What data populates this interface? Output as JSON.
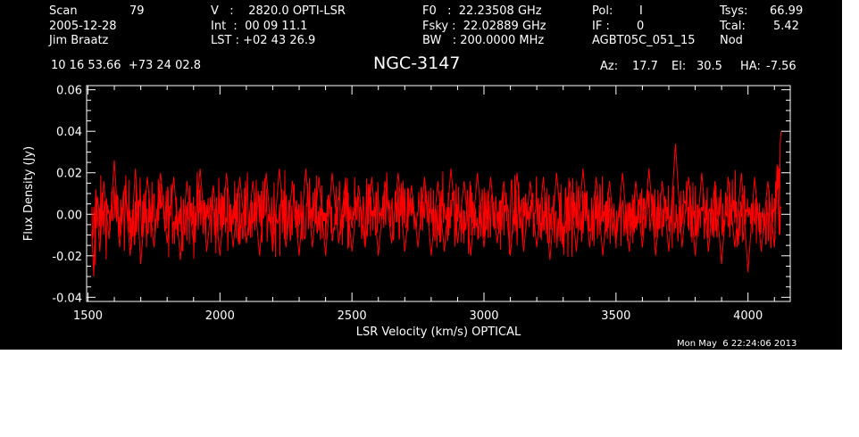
{
  "header": {
    "scan_label": "Scan",
    "scan_value": "79",
    "date": "2005-12-28",
    "observer": "Jim Braatz",
    "v_line": "V   :    2820.0 OPTI-LSR",
    "int_line": "Int  :  00 09 11.1",
    "lst_line": "LST : +02 43 26.9",
    "f0_line": "F0   :  22.23508 GHz",
    "fsky_line": "Fsky :  22.02889 GHz",
    "bw_line": "BW   : 200.0000 MHz",
    "pol_label": "Pol:",
    "pol_value": "I",
    "if_label": "IF :",
    "if_value": "0",
    "project": "AGBT05C_051_15",
    "tsys_label": "Tsys:",
    "tsys_value": "66.99",
    "tcal_label": "Tcal:",
    "tcal_value": "5.42",
    "mode": "Nod",
    "coords": "10 16 53.66  +73 24 02.8",
    "source": "NGC-3147",
    "az_label": "Az:",
    "az_value": "17.7",
    "el_label": "El:",
    "el_value": "30.5",
    "ha_label": "HA:",
    "ha_value": "-7.56"
  },
  "timestamp": "Mon May  6 22:24:06 2013",
  "colors": {
    "background": "#000000",
    "foreground": "#ffffff",
    "trace": "#ff0000"
  },
  "chart_data": {
    "type": "line",
    "title": "NGC-3147",
    "xlabel": "LSR Velocity (km/s) OPTICAL",
    "ylabel": "Flux Density (Jy)",
    "xlim": [
      1495,
      4160
    ],
    "ylim": [
      -0.042,
      0.062
    ],
    "xticks": [
      1500,
      2000,
      2500,
      3000,
      3500,
      4000
    ],
    "yticks": [
      -0.04,
      -0.02,
      0.0,
      0.02,
      0.04,
      0.06
    ],
    "ytick_labels": [
      "-0.04",
      "-0.02",
      "0.00",
      "0.02",
      "0.04",
      "0.06"
    ],
    "grid": false,
    "series": [
      {
        "color": "#ff0000",
        "x_start": 1515,
        "x_end": 4125,
        "x": [
          1515,
          1522,
          1530,
          1545,
          1560,
          1580,
          1600,
          1620,
          1640,
          1660,
          1680,
          1700,
          1725,
          1750,
          1775,
          1800,
          1825,
          1850,
          1875,
          1900,
          1925,
          1950,
          1975,
          2000,
          2025,
          2050,
          2075,
          2100,
          2125,
          2150,
          2175,
          2200,
          2225,
          2250,
          2275,
          2300,
          2325,
          2350,
          2375,
          2400,
          2425,
          2450,
          2475,
          2500,
          2525,
          2550,
          2575,
          2600,
          2625,
          2650,
          2675,
          2700,
          2725,
          2750,
          2775,
          2800,
          2825,
          2850,
          2875,
          2900,
          2925,
          2950,
          2975,
          3000,
          3025,
          3050,
          3075,
          3100,
          3125,
          3150,
          3175,
          3200,
          3225,
          3250,
          3275,
          3300,
          3325,
          3350,
          3375,
          3400,
          3425,
          3450,
          3475,
          3500,
          3525,
          3550,
          3575,
          3600,
          3625,
          3650,
          3675,
          3700,
          3725,
          3750,
          3775,
          3800,
          3825,
          3850,
          3875,
          3900,
          3925,
          3950,
          3975,
          4000,
          4025,
          4050,
          4075,
          4100,
          4110,
          4118,
          4122,
          4125
        ],
        "y": [
          -0.008,
          -0.03,
          0.012,
          -0.018,
          0.016,
          -0.012,
          0.026,
          -0.016,
          0.014,
          -0.02,
          0.022,
          -0.024,
          0.018,
          -0.016,
          0.02,
          -0.014,
          0.018,
          -0.022,
          0.016,
          -0.014,
          0.022,
          -0.018,
          0.014,
          -0.02,
          0.02,
          -0.016,
          0.018,
          -0.014,
          0.016,
          -0.02,
          0.02,
          -0.018,
          0.022,
          -0.016,
          0.016,
          -0.02,
          0.022,
          -0.016,
          0.018,
          -0.02,
          0.02,
          -0.014,
          0.016,
          -0.018,
          0.014,
          -0.016,
          0.018,
          -0.02,
          0.016,
          -0.014,
          0.02,
          -0.018,
          0.014,
          -0.016,
          0.018,
          -0.02,
          0.016,
          -0.018,
          0.022,
          -0.014,
          0.016,
          -0.02,
          0.02,
          -0.016,
          0.018,
          -0.014,
          0.016,
          -0.02,
          0.02,
          -0.018,
          0.016,
          -0.016,
          0.018,
          -0.022,
          0.02,
          -0.016,
          0.016,
          -0.018,
          0.022,
          -0.016,
          0.018,
          -0.02,
          0.016,
          -0.014,
          0.02,
          -0.018,
          0.016,
          -0.016,
          0.022,
          -0.02,
          0.016,
          -0.018,
          0.034,
          -0.016,
          0.018,
          -0.02,
          0.02,
          -0.018,
          0.016,
          -0.024,
          0.018,
          -0.016,
          0.02,
          -0.028,
          0.018,
          -0.018,
          0.016,
          -0.016,
          0.024,
          -0.01,
          0.034,
          0.04
        ]
      }
    ]
  }
}
